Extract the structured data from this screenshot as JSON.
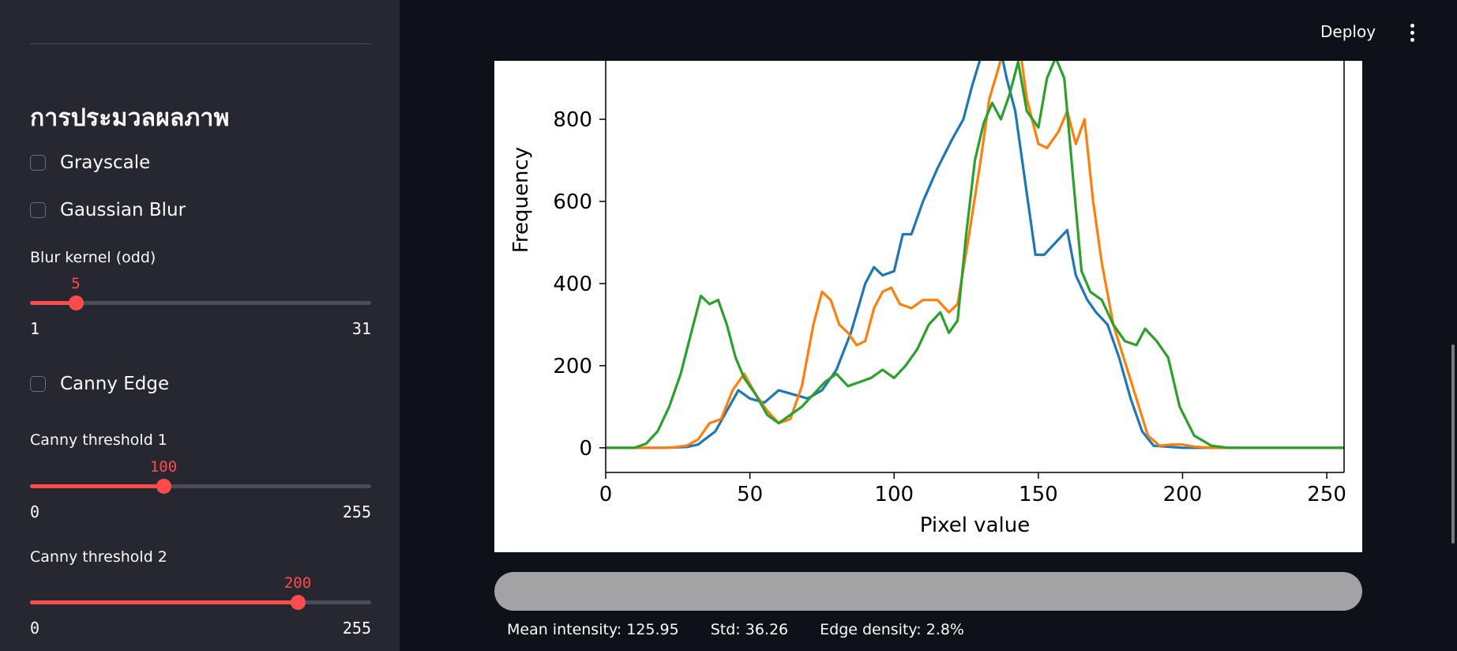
{
  "sidebar": {
    "heading": "การประมวลผลภาพ",
    "grayscale": {
      "label": "Grayscale",
      "checked": false
    },
    "gaussian_blur": {
      "label": "Gaussian Blur",
      "checked": false
    },
    "blur_kernel": {
      "label": "Blur kernel (odd)",
      "value": "5",
      "min": "1",
      "max": "31"
    },
    "canny_edge": {
      "label": "Canny Edge",
      "checked": false
    },
    "canny_threshold_1": {
      "label": "Canny threshold 1",
      "value": "100",
      "min": "0",
      "max": "255"
    },
    "canny_threshold_2": {
      "label": "Canny threshold 2",
      "value": "200",
      "min": "0",
      "max": "255"
    }
  },
  "header": {
    "deploy_label": "Deploy",
    "menu_icon": "kebab-menu-icon"
  },
  "stats": {
    "mean": "Mean intensity: 125.95",
    "std": "Std: 36.26",
    "edge": "Edge density: 2.8%"
  },
  "colors": {
    "accent": "#ff4b4b",
    "blue": "#1f77b4",
    "orange": "#ff7f0e",
    "green": "#2ca02c"
  },
  "chart_data": {
    "type": "line",
    "xlabel": "Pixel value",
    "ylabel": "Frequency",
    "xlim": [
      0,
      256
    ],
    "ylim": [
      -60,
      1000
    ],
    "xticks": [
      0,
      50,
      100,
      150,
      200,
      250
    ],
    "yticks": [
      0,
      200,
      400,
      600,
      800
    ],
    "series": [
      {
        "color": "#1f77b4",
        "points": [
          [
            0,
            0
          ],
          [
            20,
            0
          ],
          [
            28,
            2
          ],
          [
            32,
            8
          ],
          [
            38,
            40
          ],
          [
            42,
            90
          ],
          [
            46,
            140
          ],
          [
            50,
            120
          ],
          [
            55,
            110
          ],
          [
            60,
            140
          ],
          [
            65,
            130
          ],
          [
            70,
            120
          ],
          [
            75,
            140
          ],
          [
            80,
            190
          ],
          [
            85,
            280
          ],
          [
            90,
            400
          ],
          [
            93,
            440
          ],
          [
            96,
            420
          ],
          [
            100,
            430
          ],
          [
            103,
            520
          ],
          [
            106,
            520
          ],
          [
            110,
            600
          ],
          [
            115,
            680
          ],
          [
            120,
            750
          ],
          [
            124,
            800
          ],
          [
            127,
            880
          ],
          [
            130,
            950
          ],
          [
            133,
            1060
          ],
          [
            136,
            1000
          ],
          [
            139,
            900
          ],
          [
            142,
            820
          ],
          [
            146,
            620
          ],
          [
            149,
            470
          ],
          [
            152,
            470
          ],
          [
            156,
            500
          ],
          [
            160,
            530
          ],
          [
            163,
            420
          ],
          [
            167,
            360
          ],
          [
            170,
            330
          ],
          [
            174,
            300
          ],
          [
            178,
            220
          ],
          [
            182,
            120
          ],
          [
            186,
            40
          ],
          [
            190,
            5
          ],
          [
            200,
            0
          ],
          [
            256,
            0
          ]
        ]
      },
      {
        "color": "#ff7f0e",
        "points": [
          [
            0,
            0
          ],
          [
            22,
            0
          ],
          [
            28,
            5
          ],
          [
            32,
            20
          ],
          [
            36,
            60
          ],
          [
            40,
            70
          ],
          [
            44,
            140
          ],
          [
            48,
            180
          ],
          [
            52,
            130
          ],
          [
            56,
            90
          ],
          [
            60,
            60
          ],
          [
            64,
            70
          ],
          [
            68,
            150
          ],
          [
            72,
            300
          ],
          [
            75,
            380
          ],
          [
            78,
            360
          ],
          [
            81,
            300
          ],
          [
            84,
            280
          ],
          [
            87,
            250
          ],
          [
            90,
            260
          ],
          [
            93,
            340
          ],
          [
            96,
            380
          ],
          [
            99,
            390
          ],
          [
            102,
            350
          ],
          [
            106,
            340
          ],
          [
            110,
            360
          ],
          [
            115,
            360
          ],
          [
            119,
            330
          ],
          [
            122,
            350
          ],
          [
            126,
            520
          ],
          [
            130,
            700
          ],
          [
            133,
            850
          ],
          [
            136,
            920
          ],
          [
            139,
            1000
          ],
          [
            142,
            1060
          ],
          [
            146,
            850
          ],
          [
            150,
            740
          ],
          [
            153,
            730
          ],
          [
            157,
            770
          ],
          [
            160,
            820
          ],
          [
            163,
            740
          ],
          [
            166,
            800
          ],
          [
            169,
            600
          ],
          [
            172,
            450
          ],
          [
            176,
            300
          ],
          [
            180,
            210
          ],
          [
            184,
            120
          ],
          [
            188,
            30
          ],
          [
            192,
            5
          ],
          [
            196,
            8
          ],
          [
            200,
            8
          ],
          [
            204,
            3
          ],
          [
            210,
            0
          ],
          [
            256,
            0
          ]
        ]
      },
      {
        "color": "#2ca02c",
        "points": [
          [
            0,
            0
          ],
          [
            10,
            0
          ],
          [
            14,
            10
          ],
          [
            18,
            40
          ],
          [
            22,
            100
          ],
          [
            26,
            180
          ],
          [
            30,
            290
          ],
          [
            33,
            370
          ],
          [
            36,
            350
          ],
          [
            39,
            360
          ],
          [
            42,
            300
          ],
          [
            45,
            220
          ],
          [
            48,
            170
          ],
          [
            52,
            130
          ],
          [
            56,
            80
          ],
          [
            60,
            60
          ],
          [
            64,
            80
          ],
          [
            68,
            100
          ],
          [
            72,
            130
          ],
          [
            76,
            160
          ],
          [
            80,
            180
          ],
          [
            84,
            150
          ],
          [
            88,
            160
          ],
          [
            92,
            170
          ],
          [
            96,
            190
          ],
          [
            100,
            170
          ],
          [
            104,
            200
          ],
          [
            108,
            240
          ],
          [
            112,
            300
          ],
          [
            116,
            330
          ],
          [
            119,
            280
          ],
          [
            122,
            310
          ],
          [
            125,
            520
          ],
          [
            128,
            700
          ],
          [
            131,
            790
          ],
          [
            134,
            840
          ],
          [
            137,
            800
          ],
          [
            140,
            860
          ],
          [
            143,
            940
          ],
          [
            146,
            820
          ],
          [
            150,
            780
          ],
          [
            153,
            900
          ],
          [
            156,
            950
          ],
          [
            159,
            900
          ],
          [
            162,
            660
          ],
          [
            165,
            430
          ],
          [
            168,
            380
          ],
          [
            172,
            360
          ],
          [
            176,
            300
          ],
          [
            180,
            260
          ],
          [
            184,
            250
          ],
          [
            187,
            290
          ],
          [
            191,
            260
          ],
          [
            195,
            220
          ],
          [
            199,
            100
          ],
          [
            204,
            30
          ],
          [
            210,
            5
          ],
          [
            216,
            0
          ],
          [
            256,
            0
          ]
        ]
      }
    ]
  }
}
